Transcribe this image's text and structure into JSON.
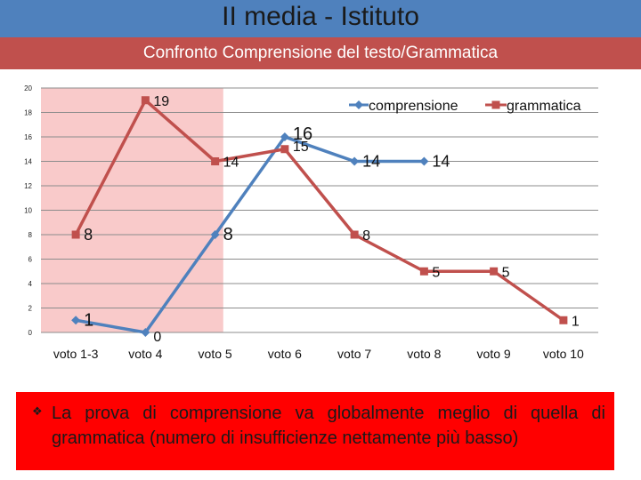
{
  "header": {
    "title": "II media - Istituto",
    "subtitle": "Confronto Comprensione del testo/Grammatica"
  },
  "colors": {
    "title_bar": "#4f81bd",
    "subtitle_bar": "#c0504d",
    "highlight": "#f9caca",
    "comprensione": "#4f81bd",
    "grammatica": "#c0504d",
    "note_bg": "#ff0000"
  },
  "chart_data": {
    "type": "line",
    "categories": [
      "voto 1-3",
      "voto 4",
      "voto 5",
      "voto 6",
      "voto 7",
      "voto 8",
      "voto 9",
      "voto 10"
    ],
    "yticks": [
      0,
      2,
      4,
      6,
      8,
      10,
      12,
      14,
      16,
      18,
      20
    ],
    "ylim": [
      0,
      20
    ],
    "grid": true,
    "legend_position": "top-right",
    "highlight_region": [
      "voto 1-3",
      "voto 5"
    ],
    "series": [
      {
        "name": "comprensione",
        "values": [
          1,
          0,
          8,
          16,
          14,
          14,
          null,
          null
        ],
        "marker": "diamond"
      },
      {
        "name": "grammatica",
        "values": [
          8,
          19,
          14,
          15,
          8,
          5,
          5,
          1
        ],
        "marker": "square"
      }
    ]
  },
  "note": {
    "bullet": "❖",
    "text": "La prova di comprensione va globalmente meglio di quella di grammatica (numero di insufficienze nettamente più basso)"
  }
}
